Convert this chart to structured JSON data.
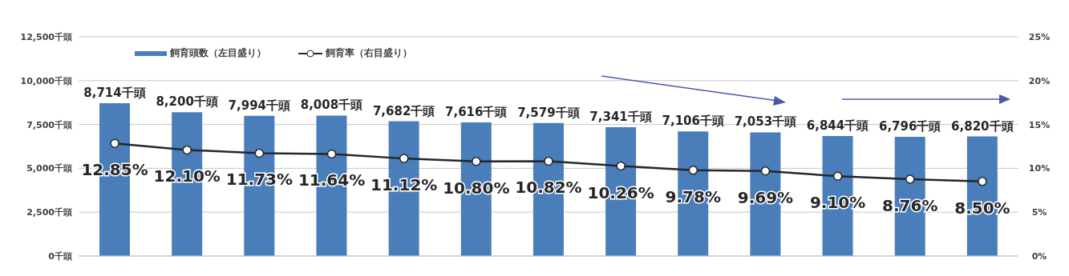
{
  "chart_data": {
    "type": "bar",
    "categories": [
      null,
      null,
      null,
      null,
      null,
      null,
      null,
      null,
      null,
      null,
      null,
      null,
      null
    ],
    "series": [
      {
        "name": "飼育頭数（左目盛り）",
        "color": "#4a7ebb",
        "values": [
          8714,
          8200,
          7994,
          8008,
          7682,
          7616,
          7579,
          7341,
          7106,
          7053,
          6844,
          6796,
          6820
        ],
        "value_labels": [
          "8,714千頭",
          "8,200千頭",
          "7,994千頭",
          "8,008千頭",
          "7,682千頭",
          "7,616千頭",
          "7,579千頭",
          "7,341千頭",
          "7,106千頭",
          "7,053千頭",
          "6,844千頭",
          "6,796千頭",
          "6,820千頭"
        ]
      },
      {
        "name": "飼育率（右目盛り）",
        "type": "line",
        "axis": "y2",
        "color": "#262626",
        "marker": "circle",
        "values": [
          12.85,
          12.1,
          11.73,
          11.64,
          11.12,
          10.8,
          10.82,
          10.26,
          9.78,
          9.69,
          9.1,
          8.76,
          8.5
        ],
        "value_labels": [
          "12.85%",
          "12.10%",
          "11.73%",
          "11.64%",
          "11.12%",
          "10.80%",
          "10.82%",
          "10.26%",
          "9.78%",
          "9.69%",
          "9.10%",
          "8.76%",
          "8.50%"
        ]
      }
    ],
    "ylim": [
      0,
      12500
    ],
    "yticks": [
      {
        "value": 0,
        "label": "0千頭"
      },
      {
        "value": 2500,
        "label": "2,500千頭"
      },
      {
        "value": 5000,
        "label": "5,000千頭"
      },
      {
        "value": 7500,
        "label": "7,500千頭"
      },
      {
        "value": 10000,
        "label": "10,000千頭"
      },
      {
        "value": 12500,
        "label": "12,500千頭"
      }
    ],
    "y2lim": [
      0,
      25
    ],
    "y2ticks": [
      {
        "value": 0,
        "label": "0%"
      },
      {
        "value": 5,
        "label": "5%"
      },
      {
        "value": 10,
        "label": "10%"
      },
      {
        "value": 15,
        "label": "15%"
      },
      {
        "value": 20,
        "label": "20%"
      },
      {
        "value": 25,
        "label": "25%"
      }
    ],
    "grid": "y",
    "legend": "top left"
  }
}
